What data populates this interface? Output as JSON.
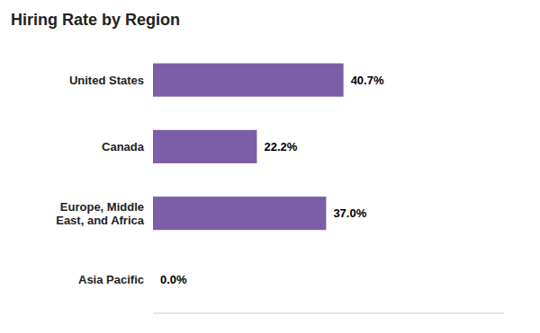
{
  "chart_data": {
    "type": "bar",
    "orientation": "horizontal",
    "title": "Hiring Rate by Region",
    "categories": [
      "United States",
      "Canada",
      "Europe, Middle\nEast, and Africa",
      "Asia Pacific"
    ],
    "values": [
      40.7,
      22.2,
      37.0,
      0.0
    ],
    "value_labels": [
      "40.7%",
      "22.2%",
      "37.0%",
      "0.0%"
    ],
    "color": "#7B5EA7",
    "xlim": [
      0,
      75
    ],
    "data_labels": true,
    "tick_labels": "y",
    "grid": false
  }
}
